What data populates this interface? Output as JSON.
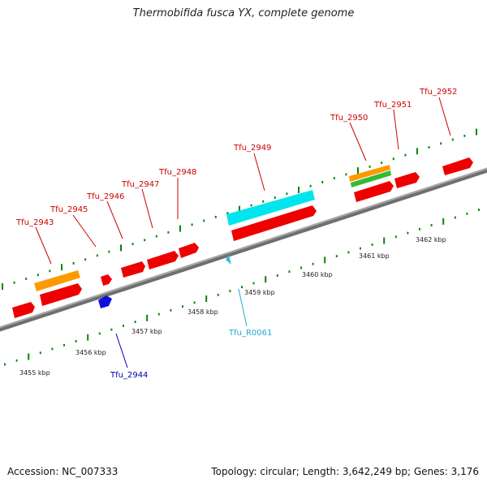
{
  "title": "Thermobifida fusca YX, complete genome",
  "accession_text": "Accession: NC_007333",
  "summary_text": "Topology: circular; Length: 3,642,249 bp; Genes: 3,176",
  "colors": {
    "backbone": "#808080",
    "cds": "#ee0000",
    "gene_label": "#cc0000",
    "rrna": "#ff9900",
    "trna": "#33bb33",
    "cyan": "#00e5ee",
    "rna_label": "#22aacc",
    "reverse": "#1111dd",
    "reverse_label": "#0000aa",
    "tick": "#008800"
  },
  "scale_labels": [
    "3455 kbp",
    "3456 kbp",
    "3457 kbp",
    "3458 kbp",
    "3459 kbp",
    "3460 kbp",
    "3461 kbp",
    "3462 kbp"
  ],
  "gene_labels": [
    {
      "text": "Tfu_2943",
      "strand": "plus"
    },
    {
      "text": "Tfu_2945",
      "strand": "plus"
    },
    {
      "text": "Tfu_2946",
      "strand": "plus"
    },
    {
      "text": "Tfu_2947",
      "strand": "plus"
    },
    {
      "text": "Tfu_2948",
      "strand": "plus"
    },
    {
      "text": "Tfu_2949",
      "strand": "plus"
    },
    {
      "text": "Tfu_2950",
      "strand": "plus"
    },
    {
      "text": "Tfu_2951",
      "strand": "plus"
    },
    {
      "text": "Tfu_2952",
      "strand": "plus"
    },
    {
      "text": "Tfu_2944",
      "strand": "minus"
    },
    {
      "text": "Tfu_R0061",
      "strand": "minus"
    }
  ]
}
